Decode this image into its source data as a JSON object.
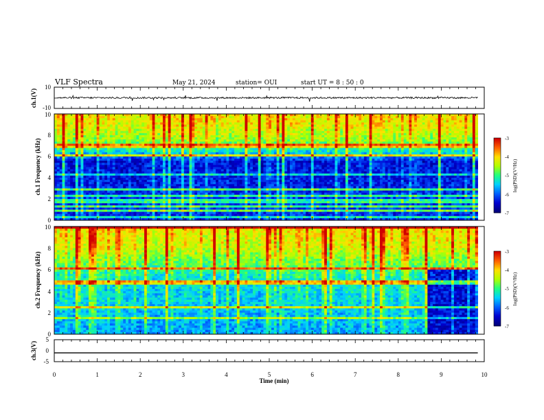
{
  "header": {
    "title": "VLF Spectra",
    "date": "May 21, 2024",
    "station": "station= OUI",
    "start_time": "start  UT =   8  : 50 : 0"
  },
  "colors": {
    "colormap": [
      "#00007a",
      "#0000d0",
      "#0060ff",
      "#00d0ff",
      "#20ff80",
      "#b0ff00",
      "#ffe000",
      "#ff6000",
      "#d00000",
      "#ffffff"
    ],
    "trace": "#000000"
  },
  "chart_data": [
    {
      "type": "line",
      "panel": "ch1-waveform",
      "ylabel": "ch.1(V)",
      "ylim": [
        -10,
        10
      ],
      "y_ticks": [
        "10",
        "-10"
      ],
      "xlim": [
        0,
        10
      ],
      "series": [
        {
          "baseline": 0,
          "noise_amplitude": 0.8
        }
      ]
    },
    {
      "type": "heatmap",
      "panel": "ch1-spectrogram",
      "ylabel": "ch.1 Frequency  (kHz)",
      "ylim": [
        0,
        10
      ],
      "y_ticks": [
        "0",
        "2",
        "4",
        "6",
        "8",
        "10"
      ],
      "xlim": [
        0,
        9.85
      ],
      "colorbar": {
        "range": [
          -7,
          -3
        ],
        "ticks": [
          "-3",
          "-4",
          "-5",
          "-6",
          "-7"
        ],
        "label": "log(PSD)(V²/Hz)"
      },
      "profile": [
        {
          "f_khz": 0,
          "level": -6.4
        },
        {
          "f_khz": 2,
          "level": -6.3
        },
        {
          "f_khz": 3.5,
          "level": -6.5
        },
        {
          "f_khz": 5.5,
          "level": -6.6
        },
        {
          "f_khz": 6.5,
          "level": -5.5
        },
        {
          "f_khz": 7.5,
          "level": -4.8
        },
        {
          "f_khz": 9,
          "level": -4.4
        },
        {
          "f_khz": 10,
          "level": -4.3
        }
      ]
    },
    {
      "type": "heatmap",
      "panel": "ch2-spectrogram",
      "ylabel": "ch.2 Frequency  (kHz)",
      "ylim": [
        0,
        10
      ],
      "y_ticks": [
        "0",
        "2",
        "4",
        "6",
        "8",
        "10"
      ],
      "xlim": [
        0,
        9.85
      ],
      "colorbar": {
        "range": [
          -7,
          -3
        ],
        "ticks": [
          "-3",
          "-4",
          "-5",
          "-6",
          "-7"
        ],
        "label": "log(PSD)(V²/Hz)"
      },
      "profile": [
        {
          "f_khz": 0,
          "level": -5.8
        },
        {
          "f_khz": 3,
          "level": -5.6
        },
        {
          "f_khz": 5,
          "level": -5.5
        },
        {
          "f_khz": 6.5,
          "level": -5.0
        },
        {
          "f_khz": 8,
          "level": -4.5
        },
        {
          "f_khz": 10,
          "level": -4.3
        }
      ],
      "quiet_region": {
        "t_start": 8.7,
        "t_end": 9.85,
        "f_max": 6,
        "level": -6.6
      }
    },
    {
      "type": "line",
      "panel": "ch3-waveform",
      "ylabel": "ch.3(V)",
      "ylim": [
        -5,
        5
      ],
      "y_ticks": [
        "5",
        "0",
        "-5"
      ],
      "xlim": [
        0,
        10
      ],
      "series": [
        {
          "baseline": -1.0,
          "noise_amplitude": 0
        }
      ]
    }
  ],
  "x_axis": {
    "label": "Time  (min)",
    "ticks": [
      "0",
      "1",
      "2",
      "3",
      "4",
      "5",
      "6",
      "7",
      "8",
      "9",
      "10"
    ]
  }
}
